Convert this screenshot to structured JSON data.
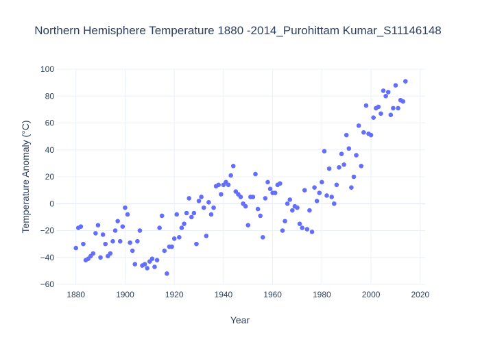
{
  "chart_data": {
    "type": "scatter",
    "title": "Northern Hemisphere Temperature 1880 -2014_Purohittam Kumar_S11146148",
    "xlabel": "Year",
    "ylabel": "Temperature Anomaly (°C)",
    "xlim": [
      1872,
      2022
    ],
    "ylim": [
      -60,
      100
    ],
    "xticks": [
      1880,
      1900,
      1920,
      1940,
      1960,
      1980,
      2000,
      2020
    ],
    "yticks": [
      -60,
      -40,
      -20,
      0,
      20,
      40,
      60,
      80,
      100
    ],
    "grid": true,
    "marker_color": "#636efa",
    "points": {
      "x": [
        1880,
        1881,
        1882,
        1883,
        1884,
        1885,
        1886,
        1887,
        1888,
        1889,
        1890,
        1891,
        1892,
        1893,
        1894,
        1895,
        1896,
        1897,
        1898,
        1899,
        1900,
        1901,
        1902,
        1903,
        1904,
        1905,
        1906,
        1907,
        1908,
        1909,
        1910,
        1911,
        1912,
        1913,
        1914,
        1915,
        1916,
        1917,
        1918,
        1919,
        1920,
        1921,
        1922,
        1923,
        1924,
        1925,
        1926,
        1927,
        1928,
        1929,
        1930,
        1931,
        1932,
        1933,
        1934,
        1935,
        1936,
        1937,
        1938,
        1939,
        1940,
        1941,
        1942,
        1943,
        1944,
        1945,
        1946,
        1947,
        1948,
        1949,
        1950,
        1951,
        1952,
        1953,
        1954,
        1955,
        1956,
        1957,
        1958,
        1959,
        1960,
        1961,
        1962,
        1963,
        1964,
        1965,
        1966,
        1967,
        1968,
        1969,
        1970,
        1971,
        1972,
        1973,
        1974,
        1975,
        1976,
        1977,
        1978,
        1979,
        1980,
        1981,
        1982,
        1983,
        1984,
        1985,
        1986,
        1987,
        1988,
        1989,
        1990,
        1991,
        1992,
        1993,
        1994,
        1995,
        1996,
        1997,
        1998,
        1999,
        2000,
        2001,
        2002,
        2003,
        2004,
        2005,
        2006,
        2007,
        2008,
        2009,
        2010,
        2011,
        2012,
        2013,
        2014
      ],
      "y": [
        -33,
        -18,
        -17,
        -30,
        -42,
        -41,
        -39,
        -37,
        -22,
        -16,
        -40,
        -23,
        -30,
        -39,
        -37,
        -28,
        -20,
        -13,
        -28,
        -17,
        -3,
        -8,
        -29,
        -35,
        -45,
        -28,
        -20,
        -46,
        -45,
        -48,
        -43,
        -41,
        -47,
        -42,
        -18,
        -9,
        -35,
        -52,
        -32,
        -32,
        -26,
        -8,
        -25,
        -18,
        -15,
        -7,
        4,
        -10,
        -7,
        -30,
        2,
        5,
        -3,
        -24,
        1,
        -8,
        -3,
        13,
        14,
        7,
        14,
        16,
        14,
        21,
        28,
        9,
        7,
        5,
        0,
        -2,
        -16,
        5,
        5,
        22,
        -4,
        -9,
        -25,
        4,
        16,
        11,
        8,
        8,
        14,
        15,
        -20,
        -13,
        0,
        3,
        -5,
        -2,
        -3,
        -15,
        -18,
        10,
        -19,
        -5,
        -21,
        12,
        2,
        8,
        16,
        39,
        6,
        26,
        5,
        0,
        14,
        27,
        37,
        29,
        51,
        41,
        12,
        20,
        36,
        58,
        28,
        53,
        73,
        52,
        51,
        64,
        71,
        72,
        67,
        84,
        80,
        83,
        66,
        71,
        88,
        71,
        77,
        76,
        91
      ]
    }
  }
}
